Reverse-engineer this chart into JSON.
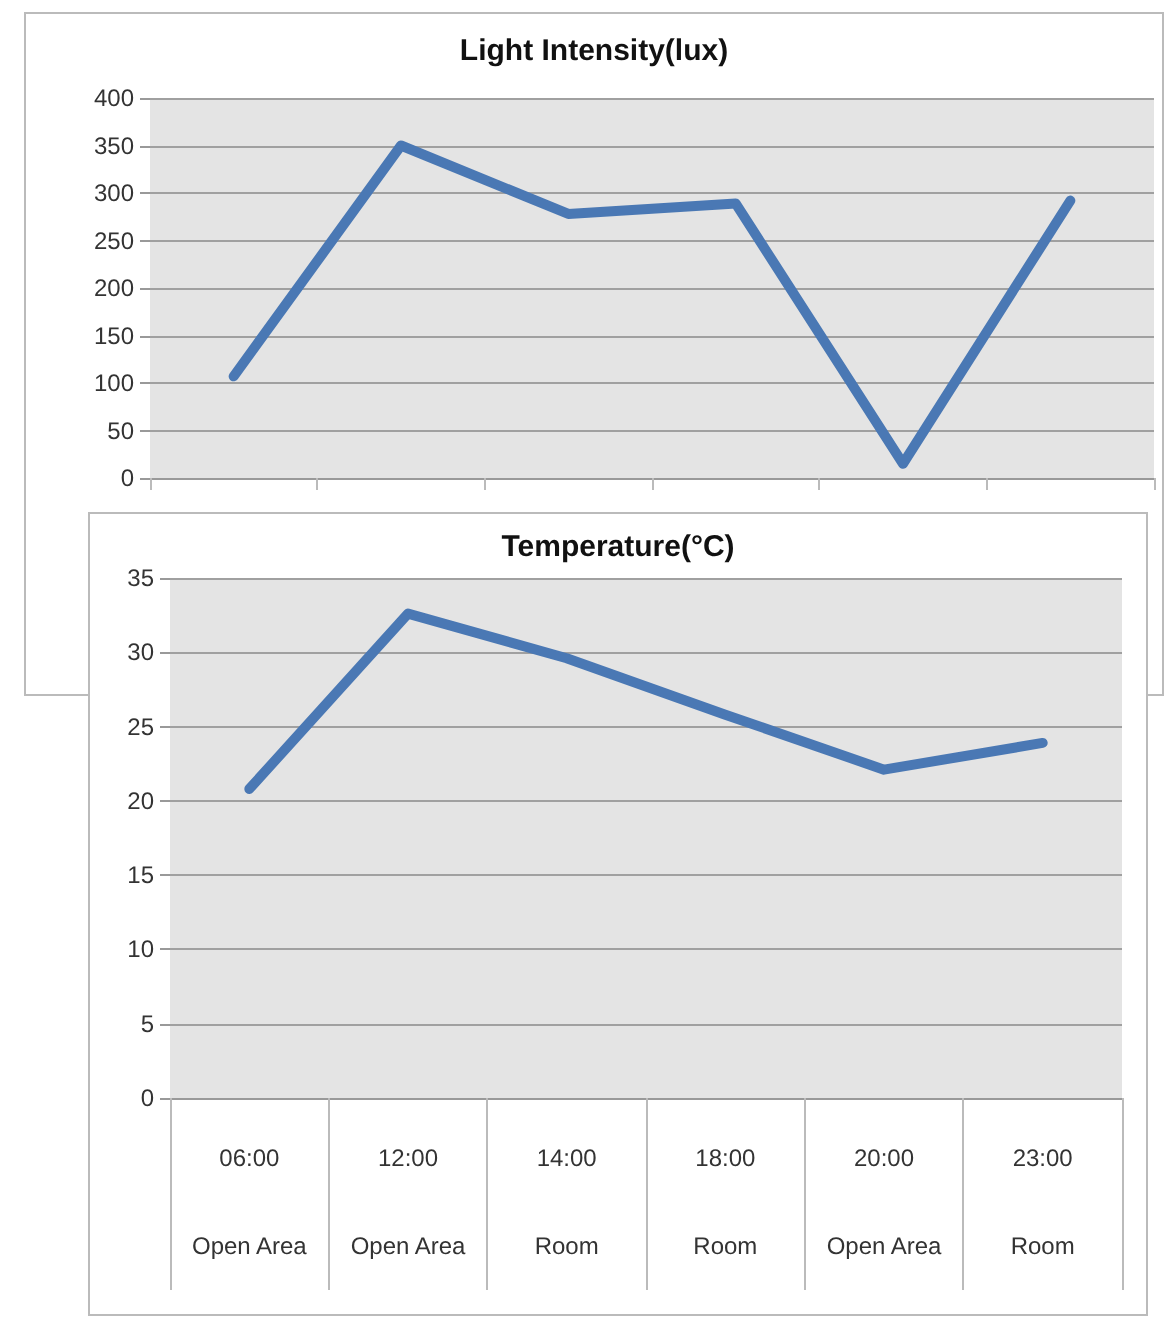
{
  "chart_data": [
    {
      "type": "line",
      "title": "Light Intensity(lux)",
      "categories": [
        null,
        null,
        null,
        null,
        null,
        null
      ],
      "values": [
        107,
        350,
        278,
        289,
        15,
        292
      ],
      "color": "#4a78b4",
      "ylim": [
        0,
        400
      ],
      "yticks": [
        0,
        50,
        100,
        150,
        200,
        250,
        300,
        350,
        400
      ],
      "grid": "y",
      "marker": "none",
      "tick_labels": "y"
    },
    {
      "type": "line",
      "title": "Temperature(°C)",
      "categories": [
        "06:00\nOpen Area",
        "12:00\nOpen Area",
        "14:00\nRoom",
        "18:00\nRoom",
        "20:00\nOpen Area",
        "23:00\nRoom"
      ],
      "values": [
        20.8,
        32.6,
        29.6,
        25.8,
        22.1,
        23.9
      ],
      "color": "#4a78b4",
      "ylim": [
        0,
        35
      ],
      "yticks": [
        0,
        5,
        10,
        15,
        20,
        25,
        30,
        35
      ],
      "grid": "y",
      "marker": "none"
    }
  ]
}
